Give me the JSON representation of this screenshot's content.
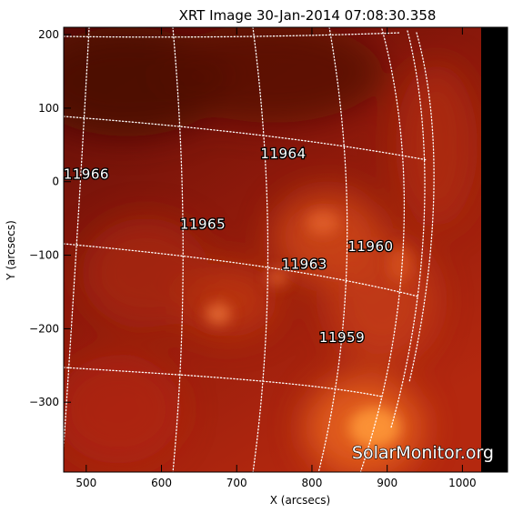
{
  "title": "XRT Image 30-Jan-2014 07:08:30.358",
  "x_axis": {
    "label": "X (arcsecs)",
    "range": [
      470,
      1060
    ],
    "ticks": [
      500,
      600,
      700,
      800,
      900,
      1000
    ],
    "tick_labels": [
      "500",
      "600",
      "700",
      "800",
      "900",
      "1000"
    ]
  },
  "y_axis": {
    "label": "Y (arcsecs)",
    "range": [
      -395,
      210
    ],
    "ticks": [
      200,
      100,
      0,
      -100,
      -200,
      -300
    ],
    "tick_labels": [
      "200",
      "100",
      "0",
      "−100",
      "−200",
      "−300"
    ]
  },
  "active_regions": [
    {
      "label": "11966",
      "x": 500,
      "y": 10
    },
    {
      "label": "11964",
      "x": 762,
      "y": 38
    },
    {
      "label": "11965",
      "x": 655,
      "y": -58
    },
    {
      "label": "11960",
      "x": 878,
      "y": -88
    },
    {
      "label": "11963",
      "x": 790,
      "y": -112
    },
    {
      "label": "11959",
      "x": 840,
      "y": -212
    }
  ],
  "watermark": "SolarMonitor.org",
  "colors": {
    "image_dark": "#5a0c06",
    "image_mid": "#a2200e",
    "image_bright": "#e0541d",
    "image_hot": "#ff9a3a",
    "off_disk": "#000000",
    "grid": "#ffffff"
  }
}
